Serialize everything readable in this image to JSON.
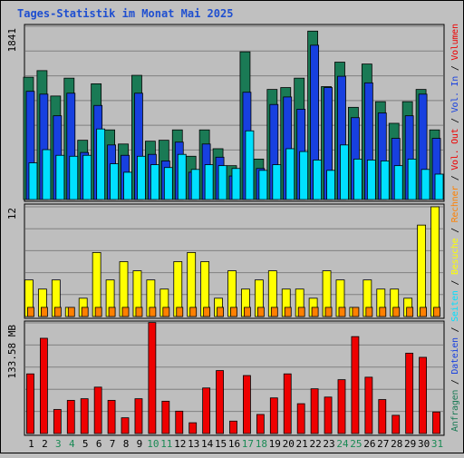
{
  "chart_data": {
    "type": "bar",
    "title": "Tages-Statistik im Monat Mai 2025",
    "categories": [
      "1",
      "2",
      "3",
      "4",
      "5",
      "6",
      "7",
      "8",
      "9",
      "10",
      "11",
      "12",
      "13",
      "14",
      "15",
      "16",
      "17",
      "18",
      "19",
      "20",
      "21",
      "22",
      "23",
      "24",
      "25",
      "26",
      "27",
      "28",
      "29",
      "30",
      "31"
    ],
    "weekend_days": [
      "3",
      "4",
      "10",
      "11",
      "17",
      "18",
      "24",
      "25",
      "31"
    ],
    "panels": [
      {
        "name": "hits",
        "max_label": "1841",
        "ylim": [
          0,
          1841
        ],
        "series": [
          {
            "name": "Anfragen",
            "color": "#1a7a55",
            "values": [
              1300,
              1370,
              1100,
              1290,
              630,
              1230,
              740,
              590,
              1320,
              620,
              630,
              740,
              460,
              740,
              540,
              360,
              1570,
              430,
              1170,
              1190,
              1290,
              1790,
              1200,
              1460,
              980,
              1440,
              1040,
              810,
              1040,
              1170,
              740
            ]
          },
          {
            "name": "Dateien",
            "color": "#1740e0",
            "values": [
              1150,
              1120,
              890,
              1130,
              500,
              1000,
              580,
              470,
              1130,
              480,
              410,
              610,
              290,
              590,
              450,
              250,
              1140,
              330,
              1010,
              1090,
              960,
              1640,
              1190,
              1310,
              870,
              1240,
              920,
              650,
              890,
              1120,
              650
            ]
          },
          {
            "name": "Seiten",
            "color": "#00e0ff",
            "values": [
              390,
              530,
              470,
              460,
              470,
              750,
              380,
              290,
              460,
              370,
              340,
              480,
              320,
              370,
              360,
              330,
              730,
              310,
              370,
              540,
              510,
              420,
              310,
              580,
              430,
              420,
              410,
              360,
              430,
              320,
              270
            ]
          }
        ]
      },
      {
        "name": "visits",
        "max_label": "12",
        "ylim": [
          0,
          12
        ],
        "series": [
          {
            "name": "Besuche",
            "color": "#ffff00",
            "values": [
              4,
              3,
              4,
              1,
              2,
              7,
              4,
              6,
              5,
              4,
              3,
              6,
              7,
              6,
              2,
              5,
              3,
              4,
              5,
              3,
              3,
              2,
              5,
              4,
              1,
              4,
              3,
              3,
              2,
              10,
              12
            ]
          },
          {
            "name": "Rechner",
            "color": "#ff8000",
            "values": [
              1,
              1,
              1,
              1,
              1,
              1,
              1,
              1,
              1,
              1,
              1,
              1,
              1,
              1,
              1,
              1,
              1,
              1,
              1,
              1,
              1,
              1,
              1,
              1,
              1,
              1,
              1,
              1,
              1,
              1,
              1
            ]
          }
        ]
      },
      {
        "name": "volume",
        "max_label": "133.58 MB",
        "ylim": [
          0,
          133.58
        ],
        "series": [
          {
            "name": "Volumen",
            "color": "#ee0000",
            "values": [
              72,
              115,
              29,
              40,
              42,
              56,
              40,
              19,
              42,
              134,
              39,
              27,
              13,
              55,
              76,
              15,
              70,
              23,
              43,
              72,
              36,
              54,
              44,
              65,
              117,
              68,
              41,
              22,
              97,
              92,
              26
            ]
          }
        ]
      }
    ],
    "right_legend": [
      {
        "text": "Anfragen",
        "color": "#1a7a55"
      },
      {
        "text": "Dateien",
        "color": "#1740e0"
      },
      {
        "text": "Seiten",
        "color": "#00e0ff"
      },
      {
        "text": "Besuche",
        "color": "#ffff00"
      },
      {
        "text": "Rechner",
        "color": "#ff8000"
      },
      {
        "text": "Vol. Out",
        "color": "#ee0000"
      },
      {
        "text": "Vol. In",
        "color": "#1740e0"
      },
      {
        "text": "Volumen",
        "color": "#ee0000"
      }
    ]
  }
}
